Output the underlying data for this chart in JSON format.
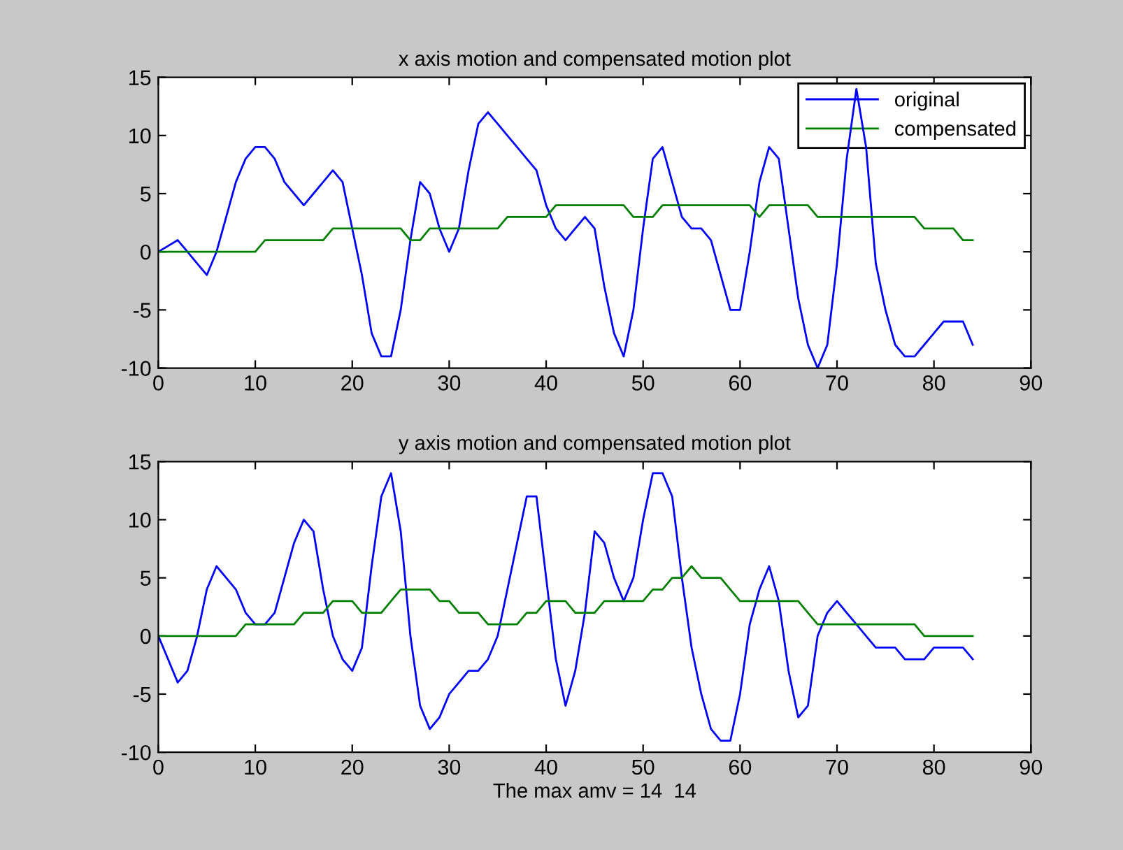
{
  "chart_data": [
    {
      "type": "line",
      "title": "x axis motion and compensated motion plot",
      "legend": "top right",
      "grid": false,
      "xlim": [
        0,
        90
      ],
      "xticks": [
        0,
        10,
        20,
        30,
        40,
        50,
        60,
        70,
        80,
        90
      ],
      "ylim": [
        -10,
        15
      ],
      "yticks": [
        -10,
        -5,
        0,
        5,
        10,
        15
      ],
      "x": [
        0,
        1,
        2,
        3,
        4,
        5,
        6,
        7,
        8,
        9,
        10,
        11,
        12,
        13,
        14,
        15,
        16,
        17,
        18,
        19,
        20,
        21,
        22,
        23,
        24,
        25,
        26,
        27,
        28,
        29,
        30,
        31,
        32,
        33,
        34,
        35,
        36,
        37,
        38,
        39,
        40,
        41,
        42,
        43,
        44,
        45,
        46,
        47,
        48,
        49,
        50,
        51,
        52,
        53,
        54,
        55,
        56,
        57,
        58,
        59,
        60,
        61,
        62,
        63,
        64,
        65,
        66,
        67,
        68,
        69,
        70,
        71,
        72,
        73,
        74,
        75,
        76,
        77,
        78,
        79,
        80,
        81,
        82,
        83,
        84
      ],
      "series": [
        {
          "name": "original",
          "color": "#0000ff",
          "values": [
            0,
            0.5,
            1,
            0,
            -1,
            -2,
            0,
            3,
            6,
            8,
            9,
            9,
            8,
            6,
            5,
            4,
            5,
            6,
            7,
            6,
            2,
            -2,
            -7,
            -9,
            -9,
            -5,
            1,
            6,
            5,
            2,
            0,
            2,
            7,
            11,
            12,
            11,
            10,
            9,
            8,
            7,
            4,
            2,
            1,
            2,
            3,
            2,
            -3,
            -7,
            -9,
            -5,
            2,
            8,
            9,
            6,
            3,
            2,
            2,
            1,
            -2,
            -5,
            -5,
            0,
            6,
            9,
            8,
            2,
            -4,
            -8,
            -10,
            -8,
            -1,
            8,
            14,
            9,
            -1,
            -5,
            -8,
            -9,
            -9,
            -8,
            -7,
            -6,
            -6,
            -6,
            -8
          ]
        },
        {
          "name": "compensated",
          "color": "#008000",
          "values": [
            0,
            0,
            0,
            0,
            0,
            0,
            0,
            0,
            0,
            0,
            0,
            1,
            1,
            1,
            1,
            1,
            1,
            1,
            2,
            2,
            2,
            2,
            2,
            2,
            2,
            2,
            1,
            1,
            2,
            2,
            2,
            2,
            2,
            2,
            2,
            2,
            3,
            3,
            3,
            3,
            3,
            4,
            4,
            4,
            4,
            4,
            4,
            4,
            4,
            3,
            3,
            3,
            4,
            4,
            4,
            4,
            4,
            4,
            4,
            4,
            4,
            4,
            3,
            4,
            4,
            4,
            4,
            4,
            3,
            3,
            3,
            3,
            3,
            3,
            3,
            3,
            3,
            3,
            3,
            2,
            2,
            2,
            2,
            1,
            1
          ]
        }
      ]
    },
    {
      "type": "line",
      "title": "y axis motion and compensated motion plot",
      "xlabel": "The max amv = 14  14",
      "legend": false,
      "grid": false,
      "xlim": [
        0,
        90
      ],
      "xticks": [
        0,
        10,
        20,
        30,
        40,
        50,
        60,
        70,
        80,
        90
      ],
      "ylim": [
        -10,
        15
      ],
      "yticks": [
        -10,
        -5,
        0,
        5,
        10,
        15
      ],
      "x": [
        0,
        1,
        2,
        3,
        4,
        5,
        6,
        7,
        8,
        9,
        10,
        11,
        12,
        13,
        14,
        15,
        16,
        17,
        18,
        19,
        20,
        21,
        22,
        23,
        24,
        25,
        26,
        27,
        28,
        29,
        30,
        31,
        32,
        33,
        34,
        35,
        36,
        37,
        38,
        39,
        40,
        41,
        42,
        43,
        44,
        45,
        46,
        47,
        48,
        49,
        50,
        51,
        52,
        53,
        54,
        55,
        56,
        57,
        58,
        59,
        60,
        61,
        62,
        63,
        64,
        65,
        66,
        67,
        68,
        69,
        70,
        71,
        72,
        73,
        74,
        75,
        76,
        77,
        78,
        79,
        80,
        81,
        82,
        83,
        84
      ],
      "series": [
        {
          "color": "#0000ff",
          "values": [
            0,
            -2,
            -4,
            -3,
            0,
            4,
            6,
            5,
            4,
            2,
            1,
            1,
            2,
            5,
            8,
            10,
            9,
            4,
            0,
            -2,
            -3,
            -1,
            6,
            12,
            14,
            9,
            0,
            -6,
            -8,
            -7,
            -5,
            -4,
            -3,
            -3,
            -2,
            0,
            4,
            8,
            12,
            12,
            5,
            -2,
            -6,
            -3,
            2,
            9,
            8,
            5,
            3,
            5,
            10,
            14,
            14,
            12,
            5,
            -1,
            -5,
            -8,
            -9,
            -9,
            -5,
            1,
            4,
            6,
            3,
            -3,
            -7,
            -6,
            0,
            2,
            3,
            2,
            1,
            0,
            -1,
            -1,
            -1,
            -2,
            -2,
            -2,
            -1,
            -1,
            -1,
            -1,
            -2
          ]
        },
        {
          "color": "#008000",
          "values": [
            0,
            0,
            0,
            0,
            0,
            0,
            0,
            0,
            0,
            1,
            1,
            1,
            1,
            1,
            1,
            2,
            2,
            2,
            3,
            3,
            3,
            2,
            2,
            2,
            3,
            4,
            4,
            4,
            4,
            3,
            3,
            2,
            2,
            2,
            1,
            1,
            1,
            1,
            2,
            2,
            3,
            3,
            3,
            2,
            2,
            2,
            3,
            3,
            3,
            3,
            3,
            4,
            4,
            5,
            5,
            6,
            5,
            5,
            5,
            4,
            3,
            3,
            3,
            3,
            3,
            3,
            3,
            2,
            1,
            1,
            1,
            1,
            1,
            1,
            1,
            1,
            1,
            1,
            1,
            0,
            0,
            0,
            0,
            0,
            0
          ]
        }
      ]
    }
  ]
}
